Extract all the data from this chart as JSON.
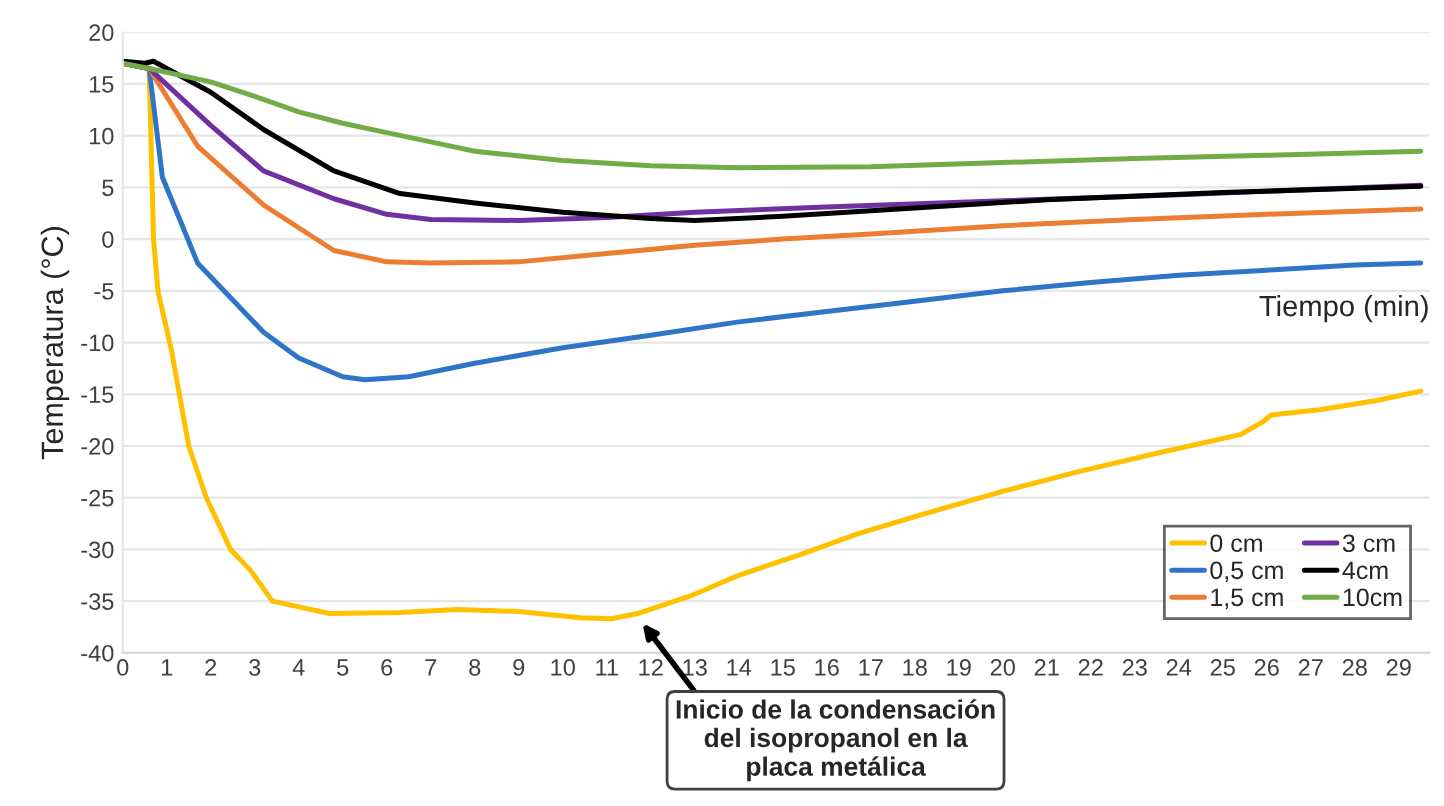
{
  "chart_data": {
    "type": "line",
    "xlabel": "Tiempo (min)",
    "ylabel": "Temperatura (°C)",
    "xlim": [
      0,
      29.7
    ],
    "xticks": [
      0,
      1,
      2,
      3,
      4,
      5,
      6,
      7,
      8,
      9,
      10,
      11,
      12,
      13,
      14,
      15,
      16,
      17,
      18,
      19,
      20,
      21,
      22,
      23,
      24,
      25,
      26,
      27,
      28,
      29
    ],
    "ylim": [
      -40,
      20
    ],
    "yticks": [
      -40,
      -35,
      -30,
      -25,
      -20,
      -15,
      -10,
      -5,
      0,
      5,
      10,
      15,
      20
    ],
    "grid": "y",
    "legend": "bottom right",
    "marker": "none",
    "line_style": "solid",
    "annotations": [
      {
        "text": "Inicio de la condensación\ndel isopropanol en la\nplaca metálica",
        "x": 11.7,
        "y": -36.5
      }
    ],
    "series": [
      {
        "name": "0 cm",
        "color": "#ffc000",
        "x": [
          0,
          0.6,
          0.7,
          0.8,
          1.1,
          1.5,
          1.9,
          2.45,
          2.9,
          3.4,
          4.7,
          6.3,
          7.6,
          9,
          10.4,
          11.1,
          11.7,
          12.9,
          14,
          15.4,
          16.7,
          18.1,
          19.9,
          21.7,
          23.5,
          25.4,
          25.9,
          26.1,
          27.2,
          28.5,
          29.5
        ],
        "values": [
          17,
          16.5,
          0,
          -5,
          -10.6,
          -20,
          -25,
          -30,
          -32,
          -35,
          -36.2,
          -36.1,
          -35.8,
          -36,
          -36.6,
          -36.7,
          -36.2,
          -34.5,
          -32.5,
          -30.5,
          -28.5,
          -26.7,
          -24.5,
          -22.5,
          -20.7,
          -18.9,
          -17.7,
          -17,
          -16.5,
          -15.6,
          -14.7
        ]
      },
      {
        "name": "0,5 cm",
        "color": "#2e75c8",
        "x": [
          0,
          0.6,
          0.9,
          1.7,
          3.2,
          4,
          5,
          5.5,
          6.5,
          8,
          10,
          12,
          14,
          16,
          18,
          20,
          22,
          24,
          26,
          28,
          29.5
        ],
        "values": [
          17,
          16.5,
          6,
          -2.3,
          -9,
          -11.5,
          -13.3,
          -13.6,
          -13.3,
          -12,
          -10.5,
          -9.3,
          -8,
          -7,
          -6,
          -5,
          -4.2,
          -3.5,
          -3,
          -2.5,
          -2.3
        ]
      },
      {
        "name": "1,5 cm",
        "color": "#ed7d31",
        "x": [
          0,
          0.6,
          1.7,
          3.2,
          4.8,
          6,
          7,
          9,
          11,
          13,
          15,
          17,
          20,
          23,
          26,
          29.5
        ],
        "values": [
          17,
          16.5,
          9,
          3.3,
          -1.1,
          -2.2,
          -2.3,
          -2.2,
          -1.4,
          -0.6,
          0,
          0.5,
          1.3,
          1.9,
          2.4,
          2.9
        ]
      },
      {
        "name": "3 cm",
        "color": "#7030a0",
        "x": [
          0,
          0.6,
          2,
          3.2,
          4.8,
          6,
          7,
          9,
          11,
          13,
          16,
          20,
          24,
          29.5
        ],
        "values": [
          17,
          16.5,
          11,
          6.6,
          3.9,
          2.4,
          1.9,
          1.8,
          2.1,
          2.6,
          3.1,
          3.7,
          4.3,
          5.2
        ]
      },
      {
        "name": "4cm",
        "color": "#000000",
        "x": [
          0,
          0.5,
          0.7,
          1,
          2,
          3.2,
          4.8,
          6.3,
          8,
          10,
          12,
          13,
          15,
          18,
          21,
          25,
          29.5
        ],
        "values": [
          17.2,
          17,
          17.2,
          16.5,
          14.2,
          10.6,
          6.6,
          4.4,
          3.5,
          2.6,
          2,
          1.8,
          2.2,
          3,
          3.8,
          4.5,
          5.1
        ]
      },
      {
        "name": "10cm",
        "color": "#70ad47",
        "x": [
          0,
          0.6,
          2,
          3,
          4,
          5,
          6,
          7,
          8,
          10,
          12,
          14,
          17,
          20,
          23,
          26,
          29.5
        ],
        "values": [
          17,
          16.5,
          15.2,
          13.8,
          12.3,
          11.2,
          10.3,
          9.4,
          8.5,
          7.6,
          7.1,
          6.9,
          7,
          7.4,
          7.8,
          8.1,
          8.5
        ]
      }
    ]
  }
}
